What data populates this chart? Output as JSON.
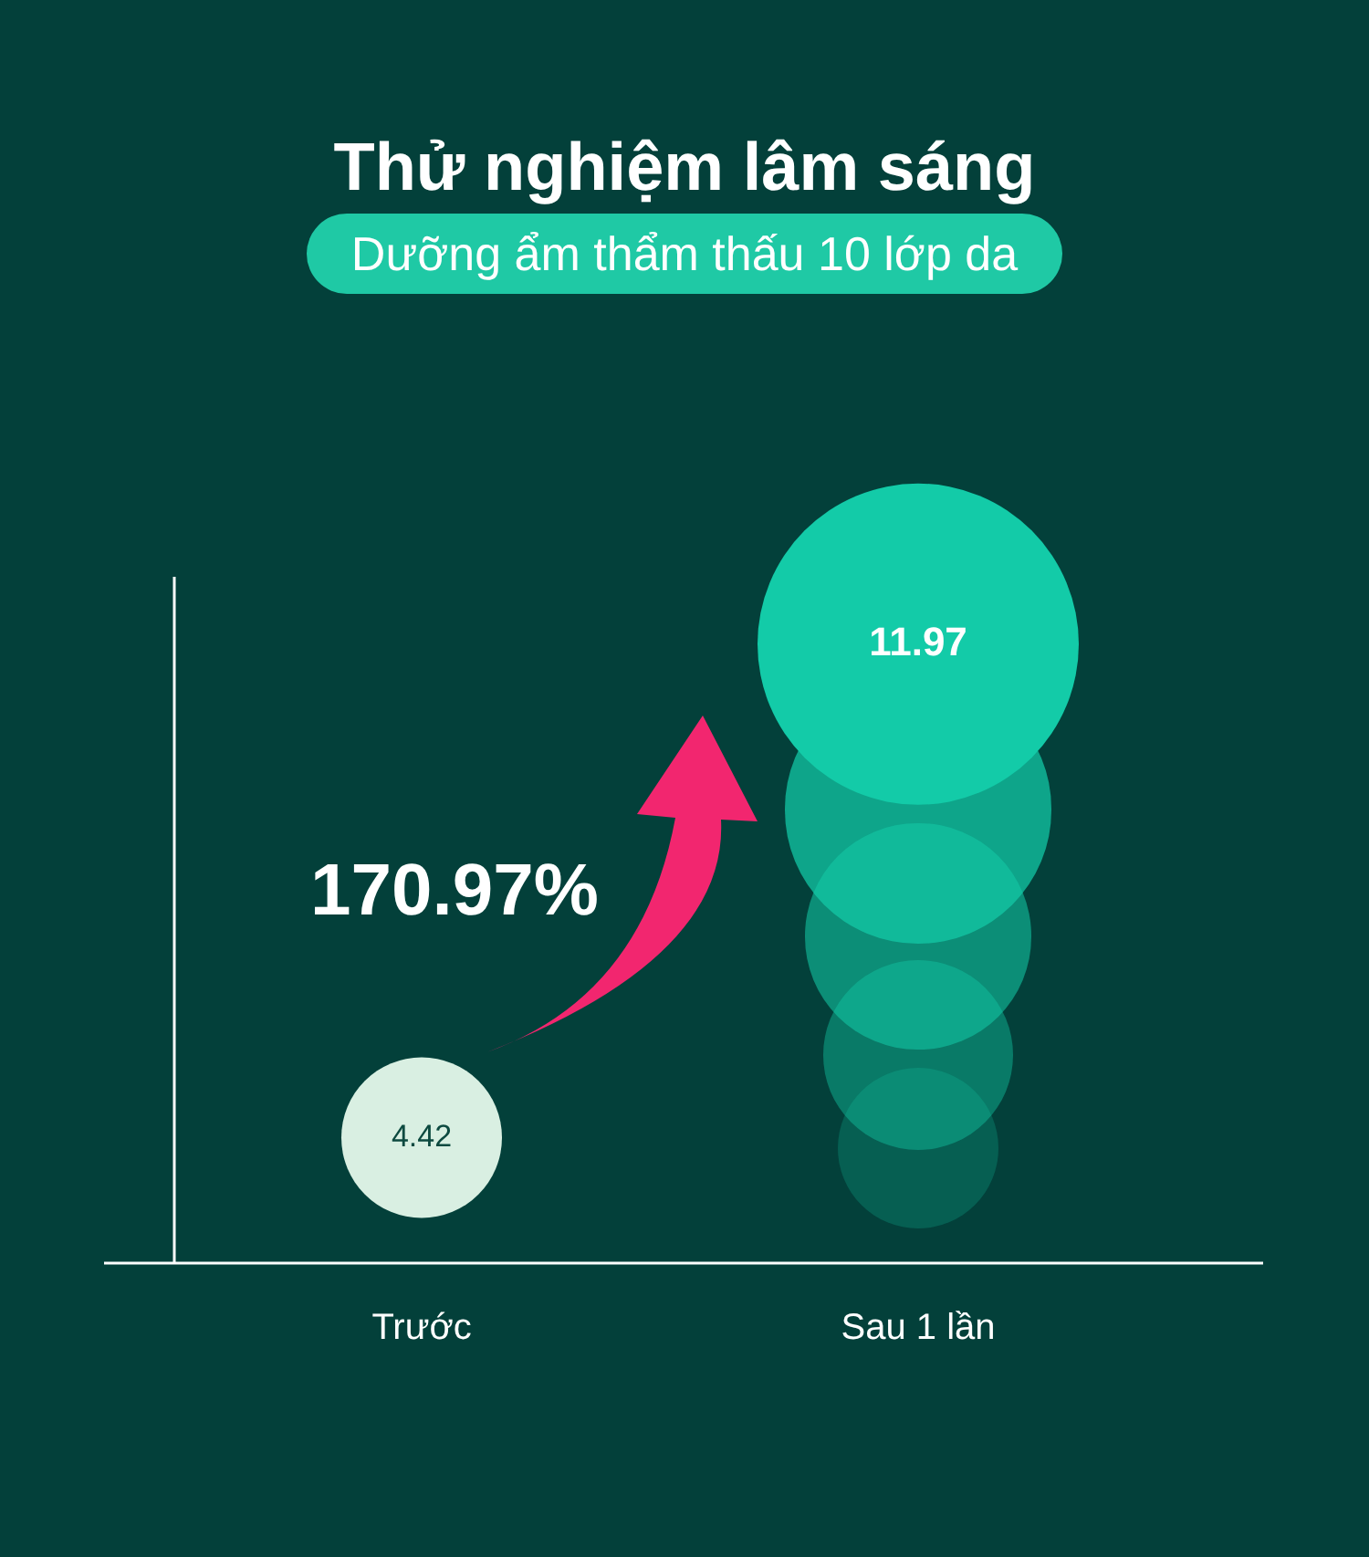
{
  "chart_data": {
    "type": "bubble",
    "title": "Thử nghiệm lâm sáng",
    "subtitle": "Dưỡng ẩm thẩm thấu 10 lớp da",
    "categories": [
      "Trước",
      "Sau 1 lần"
    ],
    "values": [
      4.42,
      11.97
    ],
    "sizes": [
      0.25,
      1
    ],
    "colors": [
      "#d9efe2",
      "#13cba8"
    ],
    "ylim": [
      2.5,
      13
    ],
    "data_labels": true,
    "annotations": [
      "170.97%"
    ],
    "tick_labels": "x"
  }
}
